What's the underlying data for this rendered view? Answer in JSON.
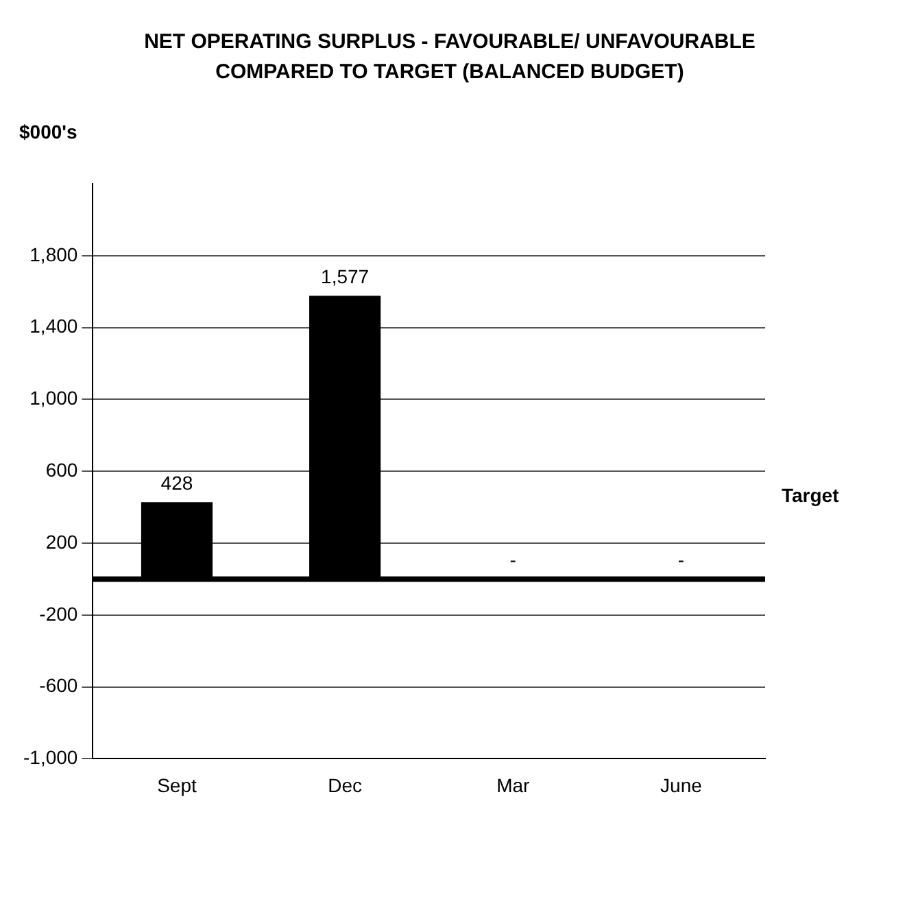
{
  "chart_data": {
    "type": "bar",
    "title": "NET OPERATING SURPLUS - FAVOURABLE/ UNFAVOURABLE COMPARED TO TARGET (BALANCED BUDGET)",
    "ylabel": "$000's",
    "categories": [
      "Sept",
      "Dec",
      "Mar",
      "June"
    ],
    "values": [
      428,
      1577,
      0,
      0
    ],
    "value_labels": [
      "428",
      "1,577",
      "-",
      "-"
    ],
    "color": "#000000",
    "ylim": [
      -1000,
      2200
    ],
    "yticks": [
      {
        "value": -1000,
        "label": "-1,000"
      },
      {
        "value": -600,
        "label": "-600"
      },
      {
        "value": -200,
        "label": "-200"
      },
      {
        "value": 200,
        "label": "200"
      },
      {
        "value": 600,
        "label": "600"
      },
      {
        "value": 1000,
        "label": "1,000"
      },
      {
        "value": 1400,
        "label": "1,400"
      },
      {
        "value": 1800,
        "label": "1,800"
      }
    ],
    "grid": "y",
    "ref_lines": [
      {
        "axis": "y",
        "value": 0,
        "label": "Target",
        "color": "#000000"
      }
    ]
  }
}
